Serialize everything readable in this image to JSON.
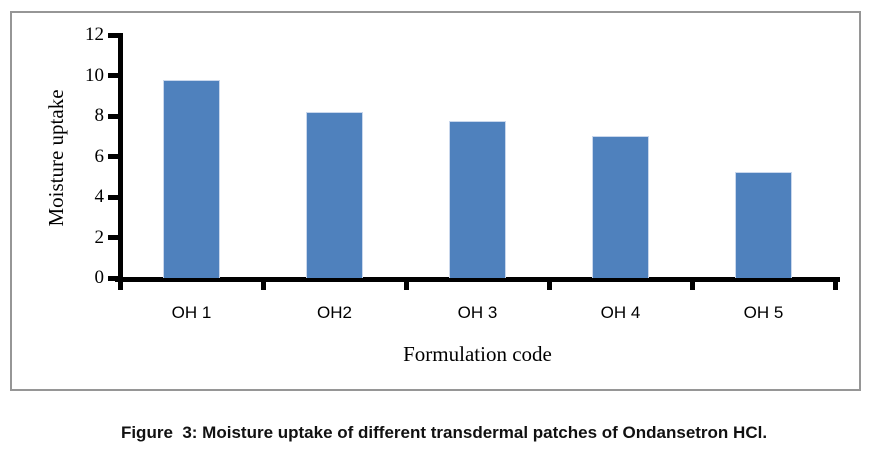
{
  "figure": {
    "caption": "Figure  3: Moisture uptake of different transdermal patches of Ondansetron HCl."
  },
  "chart_data": {
    "type": "bar",
    "title": "",
    "categories": [
      "OH 1",
      "OH2",
      "OH 3",
      "OH 4",
      "OH 5"
    ],
    "values": [
      9.8,
      8.2,
      7.75,
      7.0,
      5.25
    ],
    "xlabel": "Formulation code",
    "ylabel": "Moisture uptake",
    "ylim": [
      0,
      12
    ],
    "yticks": [
      0,
      2,
      4,
      6,
      8,
      10,
      12
    ],
    "grid": false,
    "legend": "none",
    "colors": {
      "bar_fill": "#4F81BD",
      "bar_edge": "#C9D7EC",
      "axis": "#000000",
      "frame_border": "#969696",
      "background": "#FFFFFF"
    }
  }
}
